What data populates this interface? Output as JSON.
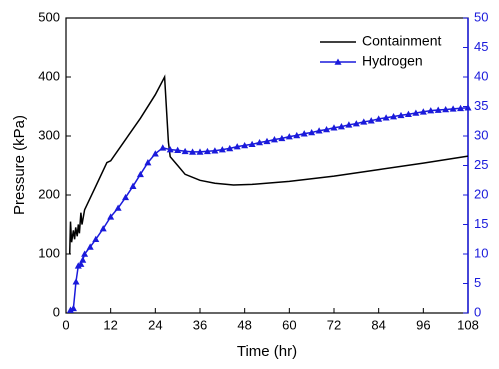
{
  "chart_data": {
    "type": "line",
    "x_label": "Time (hr)",
    "y_label": "Pressure (kPa)",
    "xlim": [
      0,
      108
    ],
    "xticks": [
      0,
      12,
      24,
      36,
      48,
      60,
      72,
      84,
      96,
      108
    ],
    "ylim": [
      0,
      500
    ],
    "yticks": [
      0,
      100,
      200,
      300,
      400,
      500
    ],
    "y2lim": [
      0,
      50
    ],
    "y2ticks": [
      0,
      5,
      10,
      15,
      20,
      25,
      30,
      35,
      40,
      45,
      50
    ],
    "y2color": "#1a1adb",
    "legend": "upper right",
    "series": [
      {
        "name": "Containment",
        "color": "#000000",
        "marker": "none",
        "x": [
          1,
          1.2,
          1.5,
          2,
          2.3,
          2.6,
          3,
          3.3,
          3.6,
          4,
          4.3,
          5,
          8,
          11,
          12,
          15,
          20,
          24,
          26.5,
          27.5,
          28,
          30,
          32,
          36,
          40,
          45,
          50,
          60,
          72,
          84,
          96,
          108
        ],
        "values": [
          100,
          155,
          120,
          140,
          125,
          145,
          130,
          150,
          135,
          170,
          150,
          175,
          215,
          255,
          258,
          285,
          330,
          370,
          400,
          290,
          265,
          250,
          235,
          225,
          220,
          217,
          218,
          223,
          232,
          243,
          254,
          266
        ]
      },
      {
        "name": "Hydrogen",
        "color": "#1a1adb",
        "marker": "triangle",
        "axis": "y2",
        "x": [
          1.2,
          2,
          2.7,
          3.3,
          4,
          4.5,
          5,
          6.5,
          8,
          10,
          12,
          14,
          16,
          18,
          20,
          22,
          24,
          26,
          28,
          30,
          32,
          34,
          36,
          38,
          40,
          42,
          44,
          46,
          48,
          50,
          52,
          54,
          56,
          58,
          60,
          62,
          64,
          66,
          68,
          70,
          72,
          74,
          76,
          78,
          80,
          82,
          84,
          86,
          88,
          90,
          92,
          94,
          96,
          98,
          100,
          102,
          104,
          106,
          108
        ],
        "values": [
          0.5,
          0.8,
          5.3,
          8,
          8.3,
          9,
          10,
          11.2,
          12.5,
          14.3,
          16.3,
          17.8,
          19.6,
          21.5,
          23.5,
          25.5,
          27,
          28,
          27.7,
          27.6,
          27.4,
          27.3,
          27.3,
          27.4,
          27.5,
          27.7,
          27.9,
          28.2,
          28.4,
          28.6,
          28.9,
          29.1,
          29.4,
          29.6,
          29.9,
          30.1,
          30.4,
          30.6,
          30.9,
          31.1,
          31.4,
          31.6,
          31.9,
          32.1,
          32.4,
          32.6,
          32.9,
          33.1,
          33.3,
          33.5,
          33.7,
          33.9,
          34.1,
          34.3,
          34.4,
          34.5,
          34.6,
          34.7,
          34.8
        ]
      }
    ]
  }
}
